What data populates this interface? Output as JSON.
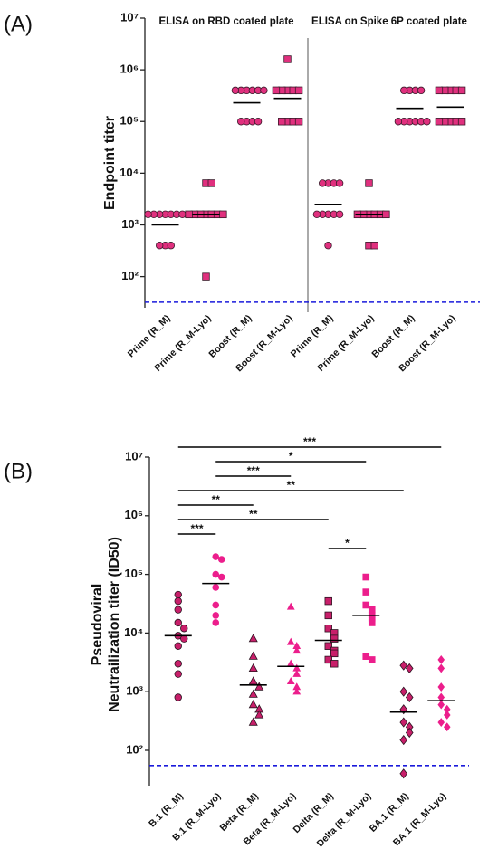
{
  "chart_data": [
    {
      "type": "dot",
      "panel_label": "(A)",
      "y_label": [
        "Endpoint titer"
      ],
      "log": true,
      "ylim": [
        25,
        10000000
      ],
      "yticks": [
        {
          "value": 100,
          "label": "10²"
        },
        {
          "value": 1000,
          "label": "10³"
        },
        {
          "value": 10000,
          "label": "10⁴"
        },
        {
          "value": 100000,
          "label": "10⁵"
        },
        {
          "value": 1000000,
          "label": "10⁶"
        },
        {
          "value": 10000000,
          "label": "10⁷"
        }
      ],
      "categories": [
        "Prime (R_M)",
        "Prime (R_M-Lyo)",
        "Boost (R_M)",
        "Boost (R_M-Lyo)",
        "Prime (R_M)",
        "Prime (R_M-Lyo)",
        "Boost (R_M)",
        "Boost  (R_M-Lyo)"
      ],
      "groups": [
        {
          "label": "ELISA on RBD coated plate",
          "first": 0,
          "last": 3
        },
        {
          "label": "ELISA on Spike 6P coated plate",
          "first": 4,
          "last": 7
        }
      ],
      "shapes": [
        "circle",
        "square",
        "circle",
        "square",
        "circle",
        "square",
        "circle",
        "square"
      ],
      "colors": [
        "#e0307e",
        "#e0307e",
        "#e0307e",
        "#e0307e",
        "#e0307e",
        "#e0307e",
        "#e0307e",
        "#e0307e"
      ],
      "edges": [
        "#3a1a2a",
        "#3a1a2a",
        "#3a1a2a",
        "#3a1a2a",
        "#3a1a2a",
        "#3a1a2a",
        "#3a1a2a",
        "#3a1a2a"
      ],
      "values": [
        [
          1600,
          1600,
          1600,
          1600,
          1600,
          1600,
          1600,
          400,
          400,
          400
        ],
        [
          6400,
          6400,
          1600,
          1600,
          1600,
          1600,
          1600,
          1600,
          1600,
          100
        ],
        [
          400000,
          400000,
          400000,
          400000,
          400000,
          400000,
          100000,
          100000,
          100000,
          100000
        ],
        [
          1600000,
          400000,
          400000,
          400000,
          400000,
          400000,
          100000,
          100000,
          100000,
          100000
        ],
        [
          6400,
          6400,
          6400,
          6400,
          1600,
          1600,
          1600,
          1600,
          1600,
          400
        ],
        [
          6400,
          1600,
          1600,
          1600,
          1600,
          1600,
          1600,
          400,
          400
        ],
        [
          400000,
          400000,
          400000,
          400000,
          100000,
          100000,
          100000,
          100000,
          100000,
          100000
        ],
        [
          400000,
          400000,
          400000,
          400000,
          400000,
          100000,
          100000,
          100000,
          100000,
          100000
        ]
      ],
      "means": [
        1000,
        1600,
        230000,
        280000,
        2500,
        1600,
        180000,
        190000
      ],
      "threshold": 32,
      "threshold_color": "#1a1adb"
    },
    {
      "type": "dot",
      "panel_label": "(B)",
      "y_label": [
        "Pseudoviral",
        "Neutrailization titer (ID50)"
      ],
      "log": true,
      "ylim": [
        25,
        10000000
      ],
      "yticks": [
        {
          "value": 100,
          "label": "10²"
        },
        {
          "value": 1000,
          "label": "10³"
        },
        {
          "value": 10000,
          "label": "10⁴"
        },
        {
          "value": 100000,
          "label": "10⁵"
        },
        {
          "value": 1000000,
          "label": "10⁶"
        },
        {
          "value": 10000000,
          "label": "10⁷"
        }
      ],
      "categories": [
        "B.1 (R_M)",
        "B.1 (R_M-Lyo)",
        "Beta (R_M)",
        "Beta (R_M-Lyo)",
        "Delta (R_M)",
        "Delta (R_M-Lyo)",
        "BA.1 (R_M)",
        "BA.1 (R_M-Lyo)"
      ],
      "shapes": [
        "circle",
        "circle",
        "triangle",
        "triangle",
        "square",
        "square",
        "diamond",
        "diamond"
      ],
      "colors": [
        "#c81f6a",
        "#ec1e8c",
        "#c81f6a",
        "#ec1e8c",
        "#c81f6a",
        "#ec1e8c",
        "#c81f6a",
        "#ec1e8c"
      ],
      "edges": [
        "#2a1420",
        "none",
        "#2a1420",
        "none",
        "#2a1420",
        "none",
        "#2a1420",
        "none"
      ],
      "values": [
        [
          45000,
          35000,
          25000,
          15000,
          12000,
          9000,
          8000,
          6000,
          3000,
          2000,
          800
        ],
        [
          200000,
          180000,
          100000,
          90000,
          60000,
          30000,
          20000,
          15000
        ],
        [
          8000,
          4000,
          2500,
          1500,
          1200,
          900,
          600,
          500,
          400,
          300
        ],
        [
          28000,
          7000,
          6000,
          5000,
          3000,
          2500,
          2000,
          1500,
          1200,
          1000
        ],
        [
          35000,
          20000,
          12000,
          10000,
          8000,
          6000,
          5000,
          4500,
          3500,
          3000
        ],
        [
          90000,
          50000,
          30000,
          25000,
          20000,
          18000,
          15000,
          4000,
          3500
        ],
        [
          2800,
          2500,
          1000,
          800,
          500,
          300,
          250,
          200,
          150,
          40
        ],
        [
          3500,
          2500,
          1200,
          800,
          600,
          500,
          400,
          300,
          250
        ]
      ],
      "means": [
        9000,
        70000,
        1300,
        2700,
        7500,
        20000,
        450,
        700
      ],
      "threshold": 55,
      "threshold_color": "#1a1adb",
      "comparisons": [
        {
          "from": 0,
          "to": 7,
          "label": "***"
        },
        {
          "from": 1,
          "to": 5,
          "label": "*"
        },
        {
          "from": 1,
          "to": 3,
          "label": "***"
        },
        {
          "from": 0,
          "to": 6,
          "label": "**"
        },
        {
          "from": 0,
          "to": 2,
          "label": "**"
        },
        {
          "from": 0,
          "to": 4,
          "label": "**"
        },
        {
          "from": 0,
          "to": 1,
          "label": "***"
        },
        {
          "from": 4,
          "to": 5,
          "label": "*"
        }
      ]
    }
  ]
}
